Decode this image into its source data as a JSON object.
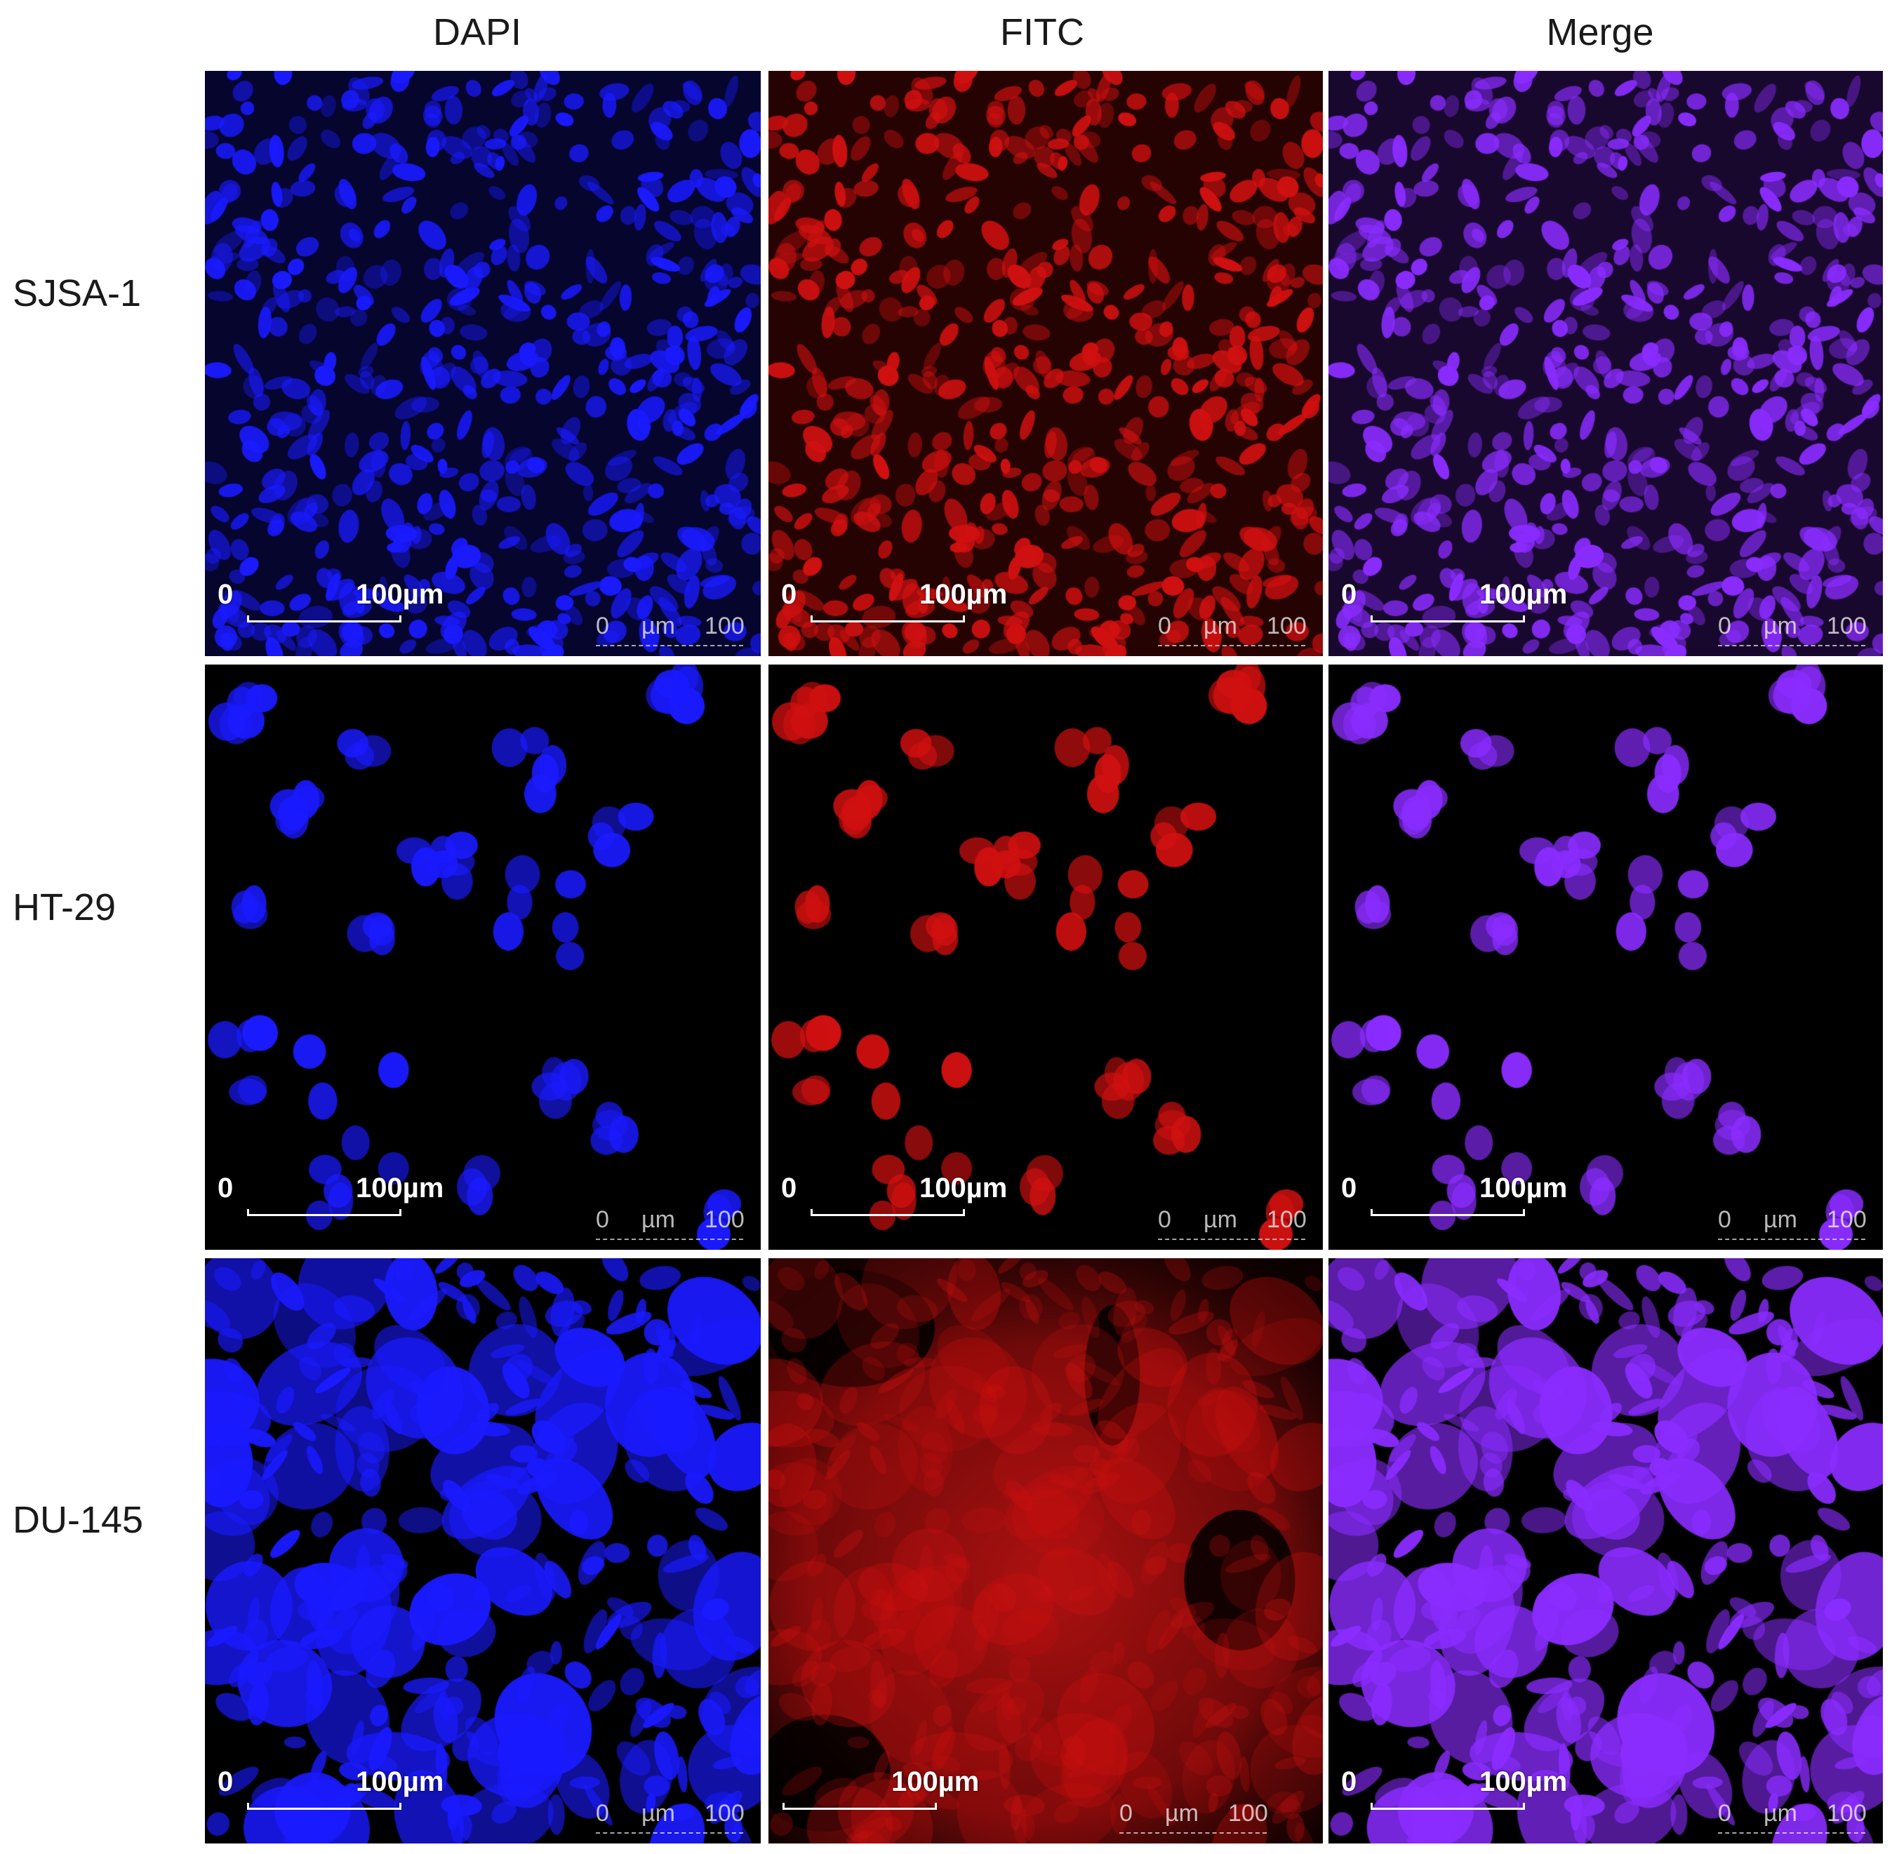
{
  "columns": [
    "DAPI",
    "FITC",
    "Merge"
  ],
  "rows": [
    "SJSA-1",
    "HT-29",
    "DU-145"
  ],
  "scalebar": {
    "zero": "0",
    "label": "100µm",
    "minor_zero": "0",
    "minor_unit": "µm",
    "minor_max": "100"
  },
  "channel_colors": {
    "DAPI": "#1a1aff",
    "FITC": "#d01010",
    "Merge": "#8a2cff"
  },
  "row_patterns": [
    "dense-elongated-cells",
    "sparse-round-clusters",
    "irregular-cell-sheets"
  ],
  "du145_fitc_no_zero_label": true
}
